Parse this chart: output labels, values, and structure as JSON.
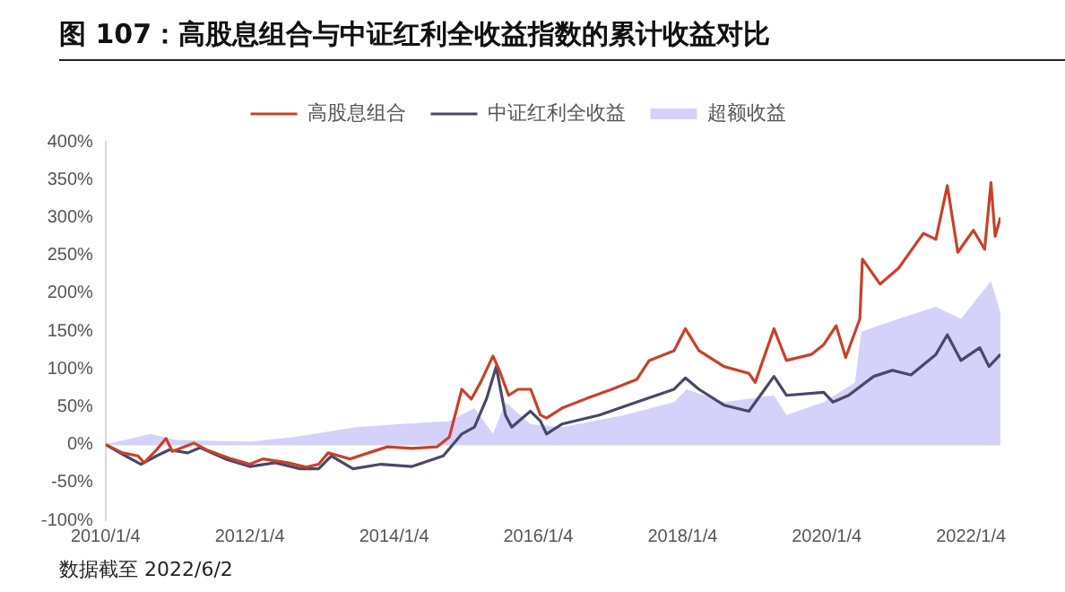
{
  "chart_data": {
    "type": "line",
    "title": "图 107：高股息组合与中证红利全收益指数的累计收益对比",
    "annotations": [
      "数据截至 2022/6/2"
    ],
    "legend": "top",
    "grid": false,
    "marker": "none",
    "line_style": "solid",
    "xlim": [
      "2010-01-04",
      "2022-06-02"
    ],
    "xticks": [
      {
        "value": "2010-01-04",
        "label": "2010/1/4"
      },
      {
        "value": "2012-01-04",
        "label": "2012/1/4"
      },
      {
        "value": "2014-01-04",
        "label": "2014/1/4"
      },
      {
        "value": "2016-01-04",
        "label": "2016/1/4"
      },
      {
        "value": "2018-01-04",
        "label": "2018/1/4"
      },
      {
        "value": "2020-01-04",
        "label": "2020/1/4"
      },
      {
        "value": "2022-01-04",
        "label": "2022/1/4"
      }
    ],
    "ylim": [
      -100,
      400
    ],
    "yticks": [
      {
        "value": -100,
        "label": "-100%"
      },
      {
        "value": -50,
        "label": "-50%"
      },
      {
        "value": 0,
        "label": "0%"
      },
      {
        "value": 50,
        "label": "50%"
      },
      {
        "value": 100,
        "label": "100%"
      },
      {
        "value": 150,
        "label": "150%"
      },
      {
        "value": 200,
        "label": "200%"
      },
      {
        "value": 250,
        "label": "250%"
      },
      {
        "value": 300,
        "label": "300%"
      },
      {
        "value": 350,
        "label": "350%"
      },
      {
        "value": 400,
        "label": "400%"
      }
    ],
    "ref_lines": [
      {
        "axis": "y",
        "value": 0,
        "color": "#d9d9d9"
      }
    ],
    "series": [
      {
        "name": "超额收益",
        "type": "area",
        "color": "#d4d2fa",
        "x": [
          "2010-01-04",
          "2010-08-19",
          "2010-12-24",
          "2012-01-09",
          "2012-08-15",
          "2013-06-26",
          "2014-02-02",
          "2014-10-11",
          "2015-02-15",
          "2015-05-20",
          "2015-07-22",
          "2015-11-25",
          "2016-05-03",
          "2017-03-15",
          "2017-11-22",
          "2018-01-25",
          "2018-08-02",
          "2019-04-12",
          "2019-06-14",
          "2019-12-20",
          "2020-05-26",
          "2020-06-27",
          "2021-01-02",
          "2021-07-10",
          "2021-11-14",
          "2022-04-15",
          "2022-06-02"
        ],
        "values": [
          0,
          14,
          6,
          4,
          10,
          23,
          27,
          31,
          48,
          14,
          56,
          27,
          23,
          39,
          56,
          73,
          56,
          65,
          39,
          56,
          82,
          149,
          166,
          182,
          166,
          216,
          174
        ]
      },
      {
        "name": "高股息组合",
        "color": "#c8412b",
        "x": [
          "2010-01-04",
          "2010-03-30",
          "2010-06-17",
          "2010-07-18",
          "2010-09-19",
          "2010-11-06",
          "2010-12-08",
          "2011-03-27",
          "2011-05-30",
          "2011-10-03",
          "2012-01-04",
          "2012-03-11",
          "2012-07-14",
          "2012-10-16",
          "2012-12-18",
          "2013-02-04",
          "2013-05-26",
          "2013-08-28",
          "2013-12-01",
          "2014-04-05",
          "2014-08-09",
          "2014-10-11",
          "2014-12-13",
          "2015-01-30",
          "2015-03-18",
          "2015-05-20",
          "2015-06-21",
          "2015-08-07",
          "2015-09-24",
          "2015-11-27",
          "2016-01-15",
          "2016-02-15",
          "2016-05-03",
          "2016-09-07",
          "2017-01-11",
          "2017-05-17",
          "2017-07-19",
          "2017-11-22",
          "2018-01-18",
          "2018-03-28",
          "2018-08-02",
          "2018-12-06",
          "2019-01-07",
          "2019-04-12",
          "2019-06-14",
          "2019-10-18",
          "2019-12-20",
          "2020-02-21",
          "2020-04-09",
          "2020-06-20",
          "2020-07-03",
          "2020-09-30",
          "2021-01-02",
          "2021-05-08",
          "2021-07-10",
          "2021-09-06",
          "2021-10-29",
          "2022-01-16",
          "2022-03-14",
          "2022-04-15",
          "2022-05-06",
          "2022-06-02"
        ],
        "values": [
          0,
          -11,
          -15,
          -24,
          -7,
          8,
          -9,
          2,
          -7,
          -19,
          -26,
          -19,
          -24,
          -30,
          -26,
          -11,
          -19,
          -11,
          -3,
          -5,
          -3,
          10,
          73,
          60,
          82,
          117,
          98,
          65,
          73,
          73,
          39,
          35,
          48,
          61,
          73,
          86,
          111,
          124,
          153,
          124,
          103,
          94,
          82,
          153,
          111,
          119,
          132,
          157,
          115,
          166,
          245,
          212,
          233,
          279,
          271,
          342,
          254,
          283,
          258,
          346,
          275,
          300
        ]
      },
      {
        "name": "中证红利全收益",
        "color": "#4a4868",
        "x": [
          "2010-01-04",
          "2010-04-15",
          "2010-07-02",
          "2010-09-19",
          "2010-11-22",
          "2011-02-24",
          "2011-04-28",
          "2011-09-02",
          "2012-01-04",
          "2012-05-13",
          "2012-09-15",
          "2012-12-18",
          "2013-02-20",
          "2013-06-10",
          "2013-10-30",
          "2014-04-05",
          "2014-09-10",
          "2014-12-13",
          "2015-02-15",
          "2015-04-18",
          "2015-06-05",
          "2015-07-22",
          "2015-08-23",
          "2015-11-25",
          "2016-01-15",
          "2016-02-15",
          "2016-05-03",
          "2016-11-09",
          "2017-05-17",
          "2017-11-22",
          "2018-01-18",
          "2018-03-28",
          "2018-08-02",
          "2018-12-06",
          "2019-04-12",
          "2019-06-14",
          "2019-12-20",
          "2020-02-05",
          "2020-04-24",
          "2020-08-29",
          "2020-12-02",
          "2021-03-06",
          "2021-07-10",
          "2021-09-06",
          "2021-11-14",
          "2022-02-17",
          "2022-04-05",
          "2022-06-02"
        ],
        "values": [
          0,
          -15,
          -26,
          -15,
          -7,
          -11,
          -4,
          -19,
          -29,
          -24,
          -32,
          -32,
          -15,
          -32,
          -26,
          -29,
          -15,
          14,
          23,
          61,
          103,
          39,
          23,
          44,
          31,
          14,
          27,
          39,
          56,
          73,
          88,
          73,
          52,
          44,
          90,
          65,
          69,
          56,
          65,
          90,
          98,
          92,
          119,
          145,
          111,
          128,
          103,
          119
        ]
      }
    ]
  }
}
